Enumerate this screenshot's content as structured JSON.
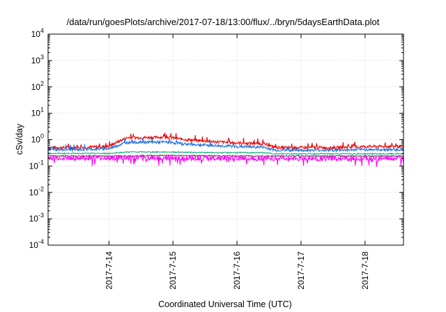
{
  "chart_data": {
    "type": "line",
    "title": "/data/run/goesPlots/archive/2017-07-18/13:00/flux/../bryn/5daysEarthData.plot",
    "xlabel": "Coordinated Universal Time (UTC)",
    "ylabel": "cSv/day",
    "yscale": "log",
    "ylim": [
      0.0001,
      10000
    ],
    "xlim": [
      -0.95,
      4.6
    ],
    "x_ticks": [
      {
        "value": 0,
        "label": "2017-7-14"
      },
      {
        "value": 1,
        "label": "2017-7-15"
      },
      {
        "value": 2,
        "label": "2017-7-16"
      },
      {
        "value": 3,
        "label": "2017-7-17"
      },
      {
        "value": 4,
        "label": "2017-7-18"
      }
    ],
    "y_ticks": [
      {
        "value": 0.0001,
        "base": "10",
        "exp": "-4"
      },
      {
        "value": 0.001,
        "base": "10",
        "exp": "-3"
      },
      {
        "value": 0.01,
        "base": "10",
        "exp": "-2"
      },
      {
        "value": 0.1,
        "base": "10",
        "exp": "-1"
      },
      {
        "value": 1,
        "base": "10",
        "exp": "0"
      },
      {
        "value": 10,
        "base": "10",
        "exp": "1"
      },
      {
        "value": 100,
        "base": "10",
        "exp": "2"
      },
      {
        "value": 1000,
        "base": "10",
        "exp": "3"
      },
      {
        "value": 10000,
        "base": "10",
        "exp": "4"
      }
    ],
    "grid": true,
    "series": [
      {
        "color": "#ee0000",
        "x": [
          -0.95,
          -0.5,
          0,
          0.15,
          0.3,
          0.6,
          0.9,
          1.2,
          1.6,
          2.0,
          2.4,
          2.6,
          3.0,
          3.5,
          4.0,
          4.6
        ],
        "y": [
          0.5,
          0.5,
          0.55,
          0.85,
          1.2,
          1.2,
          1.25,
          1.0,
          0.85,
          0.75,
          0.7,
          0.5,
          0.5,
          0.5,
          0.55,
          0.55
        ]
      },
      {
        "color": "#1e6fe0",
        "x": [
          -0.95,
          -0.5,
          0,
          0.15,
          0.3,
          0.6,
          0.9,
          1.2,
          1.6,
          2.0,
          2.4,
          2.6,
          3.0,
          3.5,
          4.0,
          4.6
        ],
        "y": [
          0.42,
          0.42,
          0.45,
          0.62,
          0.8,
          0.8,
          0.8,
          0.68,
          0.6,
          0.55,
          0.52,
          0.4,
          0.4,
          0.4,
          0.42,
          0.42
        ]
      },
      {
        "color": "#20b080",
        "x": [
          -0.95,
          0,
          0.3,
          0.9,
          1.6,
          2.4,
          2.6,
          3.5,
          4.6
        ],
        "y": [
          0.3,
          0.3,
          0.34,
          0.34,
          0.32,
          0.32,
          0.29,
          0.29,
          0.29
        ]
      },
      {
        "color": "#9a2a6a",
        "x": [
          -0.95,
          0,
          0.9,
          2.0,
          3.0,
          4.6
        ],
        "y": [
          0.24,
          0.24,
          0.25,
          0.24,
          0.24,
          0.24
        ]
      },
      {
        "color": "#ff00ff",
        "x": [
          -0.95,
          0,
          0.9,
          2.0,
          3.0,
          4.6
        ],
        "y": [
          0.2,
          0.2,
          0.2,
          0.2,
          0.19,
          0.19
        ]
      }
    ]
  }
}
